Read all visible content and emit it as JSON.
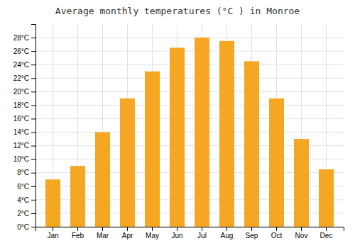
{
  "chart_data": {
    "type": "bar",
    "title": "Average monthly temperatures (°C ) in Monroe",
    "categories": [
      "Jan",
      "Feb",
      "Mar",
      "Apr",
      "May",
      "Jun",
      "Jul",
      "Aug",
      "Sep",
      "Oct",
      "Nov",
      "Dec"
    ],
    "values": [
      7,
      9,
      14,
      19,
      23,
      26.5,
      28,
      27.5,
      24.5,
      19,
      13,
      8.5
    ],
    "color": "#F5A623",
    "ylim": [
      0,
      30
    ],
    "yticks": [
      {
        "value": 0,
        "label": "0°C"
      },
      {
        "value": 2,
        "label": "2°C"
      },
      {
        "value": 4,
        "label": "4°C"
      },
      {
        "value": 6,
        "label": "6°C"
      },
      {
        "value": 8,
        "label": "8°C"
      },
      {
        "value": 10,
        "label": "10°C"
      },
      {
        "value": 12,
        "label": "12°C"
      },
      {
        "value": 14,
        "label": "14°C"
      },
      {
        "value": 16,
        "label": "16°C"
      },
      {
        "value": 18,
        "label": "18°C"
      },
      {
        "value": 20,
        "label": "20°C"
      },
      {
        "value": 22,
        "label": "22°C"
      },
      {
        "value": 24,
        "label": "24°C"
      },
      {
        "value": 26,
        "label": "26°C"
      },
      {
        "value": 28,
        "label": "28°C"
      }
    ],
    "grid": true
  }
}
